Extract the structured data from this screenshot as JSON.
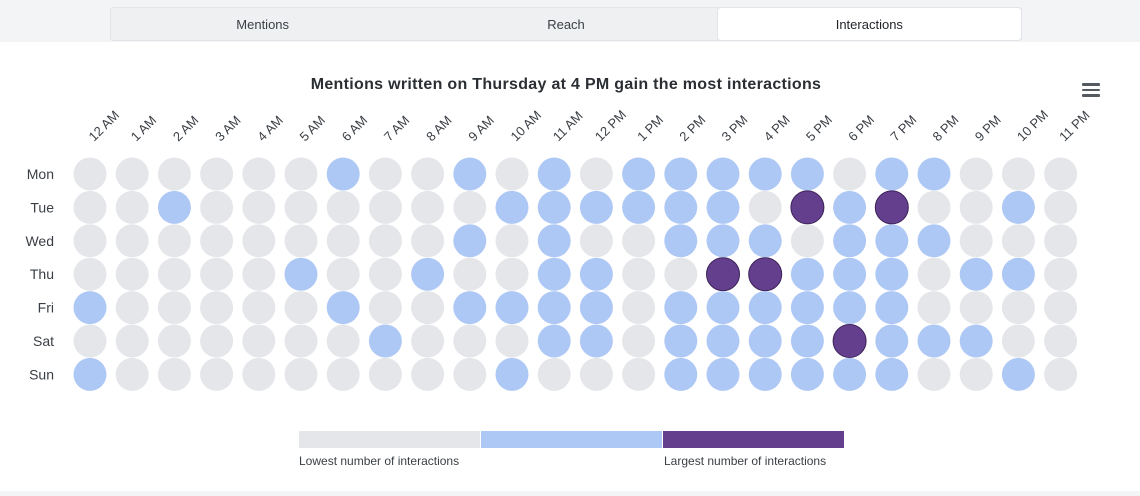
{
  "tabs": [
    {
      "label": "Mentions",
      "active": false
    },
    {
      "label": "Reach",
      "active": false
    },
    {
      "label": "Interactions",
      "active": true
    }
  ],
  "chart_data": {
    "type": "heatmap",
    "title": "Mentions written on Thursday at 4 PM gain the most interactions",
    "x_labels": [
      "12 AM",
      "1 AM",
      "2 AM",
      "3 AM",
      "4 AM",
      "5 AM",
      "6 AM",
      "7 AM",
      "8 AM",
      "9 AM",
      "10 AM",
      "11 AM",
      "12 PM",
      "1 PM",
      "2 PM",
      "3 PM",
      "4 PM",
      "5 PM",
      "6 PM",
      "7 PM",
      "8 PM",
      "9 PM",
      "10 PM",
      "11 PM"
    ],
    "y_labels": [
      "Mon",
      "Tue",
      "Wed",
      "Thu",
      "Fri",
      "Sat",
      "Sun"
    ],
    "levels": [
      [
        0,
        0,
        0,
        0,
        0,
        0,
        1,
        0,
        0,
        1,
        0,
        1,
        0,
        1,
        1,
        1,
        1,
        1,
        0,
        1,
        1,
        0,
        0,
        0
      ],
      [
        0,
        0,
        1,
        0,
        0,
        0,
        0,
        0,
        0,
        0,
        1,
        1,
        1,
        1,
        1,
        1,
        0,
        2,
        1,
        2,
        0,
        0,
        1,
        0
      ],
      [
        0,
        0,
        0,
        0,
        0,
        0,
        0,
        0,
        0,
        1,
        0,
        1,
        0,
        0,
        1,
        1,
        1,
        0,
        1,
        1,
        1,
        0,
        0,
        0
      ],
      [
        0,
        0,
        0,
        0,
        0,
        1,
        0,
        0,
        1,
        0,
        0,
        1,
        1,
        0,
        0,
        2,
        2,
        1,
        1,
        1,
        0,
        1,
        1,
        0
      ],
      [
        1,
        0,
        0,
        0,
        0,
        0,
        1,
        0,
        0,
        1,
        1,
        1,
        1,
        0,
        1,
        1,
        1,
        1,
        1,
        1,
        0,
        0,
        0,
        0
      ],
      [
        0,
        0,
        0,
        0,
        0,
        0,
        0,
        1,
        0,
        0,
        0,
        1,
        1,
        0,
        1,
        1,
        1,
        1,
        2,
        1,
        1,
        1,
        0,
        0
      ],
      [
        1,
        0,
        0,
        0,
        0,
        0,
        0,
        0,
        0,
        0,
        1,
        0,
        0,
        0,
        1,
        1,
        1,
        1,
        1,
        1,
        0,
        0,
        1,
        0
      ]
    ],
    "level_colors": [
      "#e4e6e9",
      "#aec8f6",
      "#633f8d"
    ],
    "legend": {
      "low_label": "Lowest number of interactions",
      "high_label": "Largest number of interactions"
    }
  }
}
